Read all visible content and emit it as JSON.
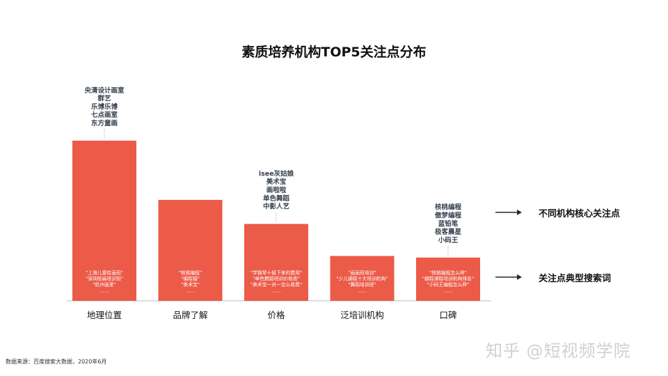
{
  "title": "素质培养机构TOP5关注点分布",
  "legend": {
    "core": "不同机构核心关注点",
    "search": "关注点典型搜索词"
  },
  "source": "数据来源：百度搜索大数据，2020年6月",
  "watermark": "知乎 @短视频学院",
  "colors": {
    "bar": "#ec5a48",
    "institution_text": "#3a4350",
    "search_text": "#ffffff",
    "axis": "#bbbbbb"
  },
  "chart_data": {
    "type": "bar",
    "title": "素质培养机构TOP5关注点分布",
    "categories": [
      "地理位置",
      "品牌了解",
      "价格",
      "泛培训机构",
      "口碑"
    ],
    "values": [
      100,
      63,
      48,
      28,
      27
    ],
    "ylim": [
      0,
      100
    ],
    "grid": false,
    "institutions": [
      [
        "央清设计画室",
        "群艺",
        "乐博乐博",
        "七点画室",
        "东方童画"
      ],
      [],
      [
        "isee灰姑娘",
        "美术宝",
        "画啦啦",
        "单色舞蹈",
        "中影人艺"
      ],
      [],
      [
        "核桃编程",
        "傲梦编程",
        "蓝铅笔",
        "极客晨星",
        "小码王"
      ]
    ],
    "search_terms": [
      [
        "\"上海儿童绘画班\"",
        "\"深圳绘画培训班\"",
        "\"杭州画室\"",
        "……"
      ],
      [
        "\"核桃编程\"",
        "\"编程猫\"",
        "\"美术宝\"",
        "……"
      ],
      [
        "\"学钢琴十级下来的费用\"",
        "\"单色舞蹈培训价格表\"",
        "\"美术宝一对一怎么收费\"",
        "……"
      ],
      [
        "\"画画班培训\"",
        "\"少儿编程十大培训机构\"",
        "\"舞蹈培训班\"",
        "……"
      ],
      [
        "\"核桃编程怎么样\"",
        "\"编程课程培训机构排名\"",
        "\"小码王编程怎么样\"",
        "……"
      ]
    ]
  }
}
